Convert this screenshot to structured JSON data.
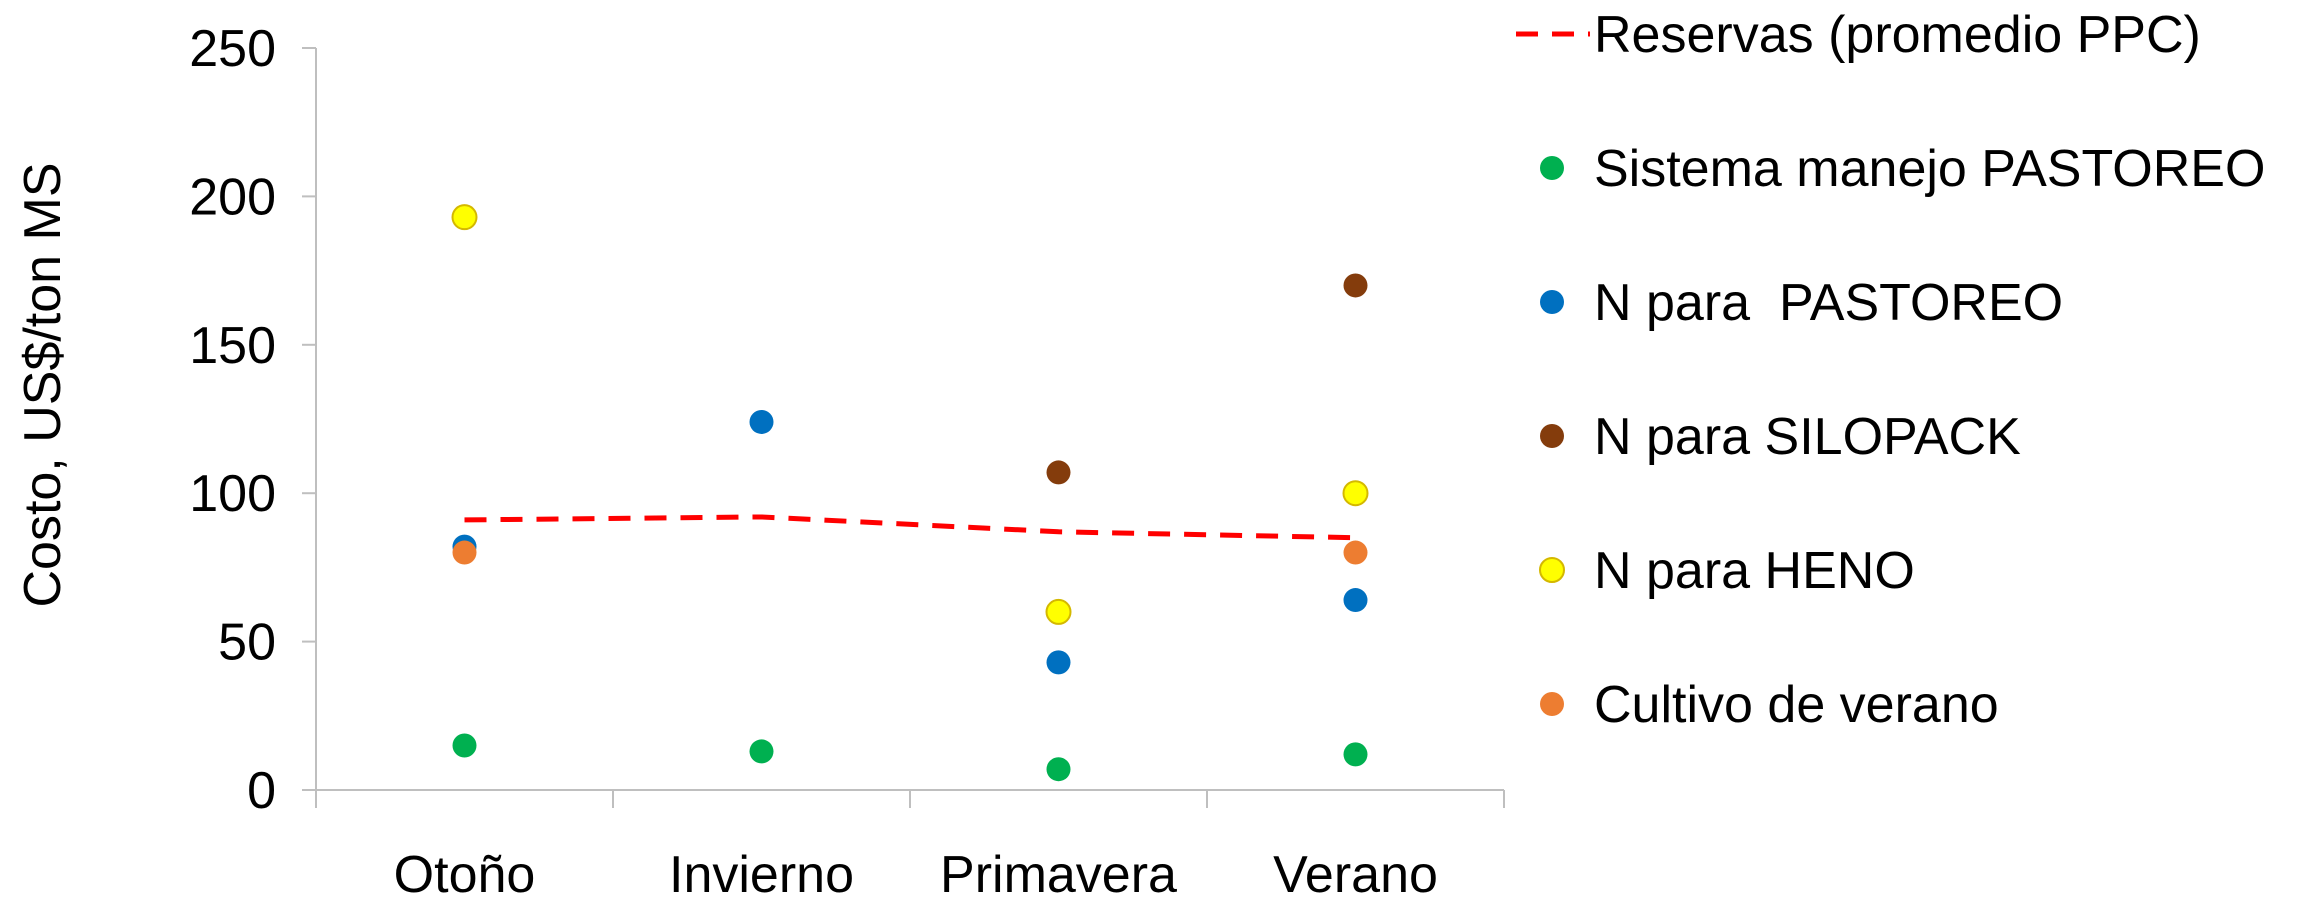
{
  "chart_data": {
    "type": "scatter",
    "title": "",
    "xlabel": "",
    "ylabel": "Costo, US$/ton MS",
    "ylim": [
      0,
      250
    ],
    "yticks": [
      0,
      50,
      100,
      150,
      200,
      250
    ],
    "categories": [
      "Otoño",
      "Invierno",
      "Primavera",
      "Verano"
    ],
    "grid": false,
    "legend_position": "right",
    "series": [
      {
        "name": "Reservas (promedio PPC)",
        "type": "line",
        "style": "dashed",
        "color": "#ff0000",
        "values": [
          91,
          92,
          87,
          85
        ]
      },
      {
        "name": "Sistema manejo PASTOREO",
        "type": "scatter",
        "color": "#00b050",
        "values": [
          15,
          13,
          7,
          12
        ]
      },
      {
        "name": "N para  PASTOREO",
        "type": "scatter",
        "color": "#0070c0",
        "values": [
          82,
          124,
          43,
          64
        ]
      },
      {
        "name": "N para SILOPACK",
        "type": "scatter",
        "color": "#843c0c",
        "values": [
          null,
          null,
          107,
          170
        ]
      },
      {
        "name": "N para HENO",
        "type": "scatter",
        "color": "#ffff00",
        "edge_color": "#d4b800",
        "values": [
          193,
          null,
          60,
          100
        ]
      },
      {
        "name": "Cultivo de verano",
        "type": "scatter",
        "color": "#ed7d31",
        "values": [
          80,
          null,
          null,
          80
        ]
      }
    ]
  }
}
